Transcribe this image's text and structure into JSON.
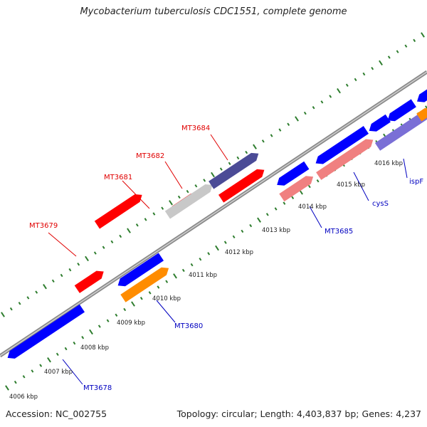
{
  "header": {
    "title": "Mycobacterium tuberculosis CDC1551, complete genome"
  },
  "footer": {
    "accession": "Accession: NC_002755",
    "topology": "Topology: circular;",
    "length": "Length: 4,403,837 bp;",
    "genes": "Genes: 4,237"
  },
  "colors": {
    "backbone": "#8a8a8a",
    "tick": "#2e7d2e",
    "forward_gene": "#ff0000",
    "reverse_gene": "#0000ff",
    "navy_gene": "#4b4b96",
    "grey_gene": "#c8c8c8",
    "pink_gene": "#f08080",
    "orange_gene": "#ff8c00",
    "lavender_gene": "#7a6fd6",
    "forward_label": "#e00000",
    "reverse_label": "#0000c0"
  },
  "scale": {
    "unit": "kbp",
    "tick_labels": [
      "4006 kbp",
      "4007 kbp",
      "4008 kbp",
      "4009 kbp",
      "4010 kbp",
      "4011 kbp",
      "4012 kbp",
      "4013 kbp",
      "4014 kbp",
      "4015 kbp",
      "4016 kbp"
    ]
  },
  "gene_labels": {
    "forward": [
      "MT3679",
      "MT3681",
      "MT3682",
      "MT3684"
    ],
    "reverse": [
      "MT3678",
      "MT3680",
      "MT3685",
      "cysS",
      "ispF"
    ]
  }
}
